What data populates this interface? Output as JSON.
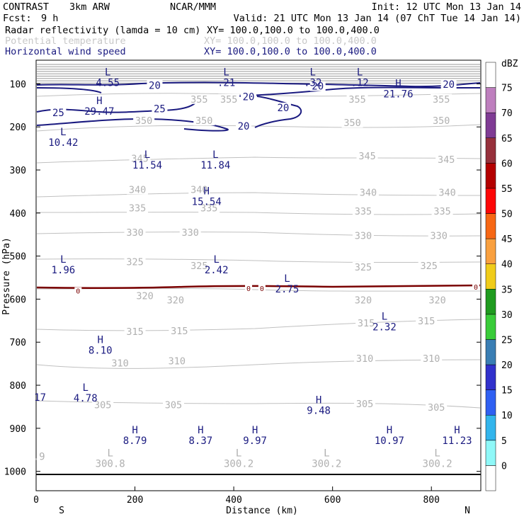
{
  "header": {
    "model": "CONTRAST",
    "config": "3km ARW",
    "org": "NCAR/MMM",
    "init": "Init: 12 UTC Mon 13 Jan 14",
    "fcst_label": "Fcst:",
    "fcst_value": "9 h",
    "valid": "Valid: 21 UTC Mon 13 Jan 14 (07 ChT Tue 14 Jan 14)"
  },
  "fields": [
    {
      "name": "Radar reflectivity (lamda = 10 cm)",
      "xy": "XY= 100.0,100.0 to 100.0,400.0",
      "color": "#000000"
    },
    {
      "name": "Potential temperature",
      "xy": "XY= 100.0,100.0 to 100.0,400.0",
      "color": "#c8c8c8"
    },
    {
      "name": "Horizontal wind speed",
      "xy": "XY= 100.0,100.0 to 100.0,400.0",
      "color": "#1a1a80"
    }
  ],
  "chart_data": {
    "type": "cross-section contour",
    "xlabel": "Distance (km)",
    "ylabel": "Pressure (hPa)",
    "xlim": [
      0,
      900
    ],
    "ylim": [
      1045,
      45
    ],
    "x_ticks": [
      0,
      200,
      400,
      600,
      800
    ],
    "y_ticks": [
      100,
      200,
      300,
      400,
      500,
      600,
      700,
      800,
      900,
      1000
    ],
    "x_end_labels": {
      "left": "S",
      "right": "N"
    },
    "colorbar": {
      "unit": "dBZ",
      "levels": [
        0,
        5,
        10,
        15,
        20,
        25,
        30,
        35,
        40,
        45,
        50,
        55,
        60,
        65,
        70,
        75
      ],
      "colors": [
        "#ffffff",
        "#8ff8f8",
        "#33b5ec",
        "#2f60f2",
        "#3131cc",
        "#3a7eb4",
        "#39cc39",
        "#1f9b1f",
        "#f0cc1a",
        "#f9a03f",
        "#f76714",
        "#fd0606",
        "#b40000",
        "#96303b",
        "#7f3b94",
        "#be7fbe",
        "#ffffff"
      ]
    },
    "theta_labels": [
      {
        "t": "355",
        "x": 330,
        "p": 140
      },
      {
        "t": "355",
        "x": 390,
        "p": 140
      },
      {
        "t": "355",
        "x": 650,
        "p": 140
      },
      {
        "t": "355",
        "x": 820,
        "p": 140
      },
      {
        "t": "350",
        "x": 218,
        "p": 190
      },
      {
        "t": "350",
        "x": 340,
        "p": 190
      },
      {
        "t": "350",
        "x": 640,
        "p": 195
      },
      {
        "t": "350",
        "x": 820,
        "p": 190
      },
      {
        "t": "345",
        "x": 210,
        "p": 278
      },
      {
        "t": "345",
        "x": 670,
        "p": 272
      },
      {
        "t": "345",
        "x": 830,
        "p": 280
      },
      {
        "t": "340",
        "x": 205,
        "p": 350
      },
      {
        "t": "340",
        "x": 330,
        "p": 350
      },
      {
        "t": "340",
        "x": 672,
        "p": 357
      },
      {
        "t": "340",
        "x": 832,
        "p": 357
      },
      {
        "t": "335",
        "x": 205,
        "p": 393
      },
      {
        "t": "335",
        "x": 350,
        "p": 393
      },
      {
        "t": "335",
        "x": 662,
        "p": 400
      },
      {
        "t": "335",
        "x": 822,
        "p": 400
      },
      {
        "t": "330",
        "x": 200,
        "p": 450
      },
      {
        "t": "330",
        "x": 312,
        "p": 450
      },
      {
        "t": "330",
        "x": 662,
        "p": 457
      },
      {
        "t": "330",
        "x": 815,
        "p": 457
      },
      {
        "t": "325",
        "x": 200,
        "p": 518
      },
      {
        "t": "325",
        "x": 330,
        "p": 527
      },
      {
        "t": "325",
        "x": 662,
        "p": 530
      },
      {
        "t": "325",
        "x": 795,
        "p": 527
      },
      {
        "t": "320",
        "x": 220,
        "p": 597
      },
      {
        "t": "320",
        "x": 282,
        "p": 607
      },
      {
        "t": "320",
        "x": 662,
        "p": 607
      },
      {
        "t": "320",
        "x": 812,
        "p": 607
      },
      {
        "t": "315",
        "x": 200,
        "p": 680
      },
      {
        "t": "315",
        "x": 290,
        "p": 678
      },
      {
        "t": "315",
        "x": 668,
        "p": 660
      },
      {
        "t": "315",
        "x": 790,
        "p": 655
      },
      {
        "t": "310",
        "x": 170,
        "p": 753
      },
      {
        "t": "310",
        "x": 285,
        "p": 748
      },
      {
        "t": "310",
        "x": 665,
        "p": 742
      },
      {
        "t": "310",
        "x": 800,
        "p": 742
      },
      {
        "t": "305",
        "x": 135,
        "p": 850
      },
      {
        "t": "305",
        "x": 278,
        "p": 850
      },
      {
        "t": "305",
        "x": 665,
        "p": 848
      },
      {
        "t": "305",
        "x": 810,
        "p": 856
      }
    ],
    "wind_labels": [
      {
        "t": "20",
        "x": 240,
        "p": 108
      },
      {
        "t": "20",
        "x": 570,
        "p": 110
      },
      {
        "t": "20",
        "x": 835,
        "p": 106
      },
      {
        "t": "20",
        "x": 430,
        "p": 135
      },
      {
        "t": "20",
        "x": 500,
        "p": 160
      },
      {
        "t": "20",
        "x": 420,
        "p": 203
      },
      {
        "t": "25",
        "x": 45,
        "p": 172
      },
      {
        "t": "25",
        "x": 250,
        "p": 163
      }
    ],
    "zero_dbz_labels": [
      {
        "t": "0",
        "x": 85,
        "p": 584
      },
      {
        "t": "0",
        "x": 430,
        "p": 578
      },
      {
        "t": "0",
        "x": 457,
        "p": 578
      },
      {
        "t": "0",
        "x": 890,
        "p": 575
      }
    ],
    "wind_extrema": [
      {
        "type": "L",
        "value": "4.55",
        "x": 145,
        "p": 80
      },
      {
        "type": "L",
        "value": ".21",
        "x": 385,
        "p": 80
      },
      {
        "type": "L",
        "value": ".32",
        "x": 560,
        "p": 80
      },
      {
        "type": "L",
        "value": ".12",
        "x": 655,
        "p": 80
      },
      {
        "type": "H",
        "value": "21.76",
        "x": 733,
        "p": 107
      },
      {
        "type": "H",
        "value": "29.47",
        "x": 128,
        "p": 147
      },
      {
        "type": "L",
        "value": "10.42",
        "x": 55,
        "p": 219
      },
      {
        "type": "L",
        "value": "11.54",
        "x": 225,
        "p": 272
      },
      {
        "type": "L",
        "value": "11.84",
        "x": 363,
        "p": 272
      },
      {
        "type": "H",
        "value": "15.54",
        "x": 345,
        "p": 357
      },
      {
        "type": "L",
        "value": "1.96",
        "x": 55,
        "p": 515
      },
      {
        "type": "L",
        "value": "2.42",
        "x": 365,
        "p": 515
      },
      {
        "type": "L",
        "value": "2.75",
        "x": 508,
        "p": 560
      },
      {
        "type": "L",
        "value": "2.32",
        "x": 705,
        "p": 648
      },
      {
        "type": "H",
        "value": "8.10",
        "x": 130,
        "p": 702
      },
      {
        "type": "L",
        "value": "4.78",
        "x": 100,
        "p": 813
      },
      {
        "type": "H",
        "value": "9.48",
        "x": 572,
        "p": 842
      },
      {
        "type": "H",
        "value": "8.79",
        "x": 200,
        "p": 912
      },
      {
        "type": "H",
        "value": "8.37",
        "x": 333,
        "p": 912
      },
      {
        "type": "H",
        "value": "9.97",
        "x": 443,
        "p": 912
      },
      {
        "type": "H",
        "value": "10.97",
        "x": 715,
        "p": 912
      },
      {
        "type": "H",
        "value": "11.23",
        "x": 852,
        "p": 912
      }
    ],
    "edge_wind_label": "17",
    "theta_extrema": [
      {
        "type": "L",
        "value": "300.8",
        "x": 150,
        "p": 965
      },
      {
        "type": "L",
        "value": "300.2",
        "x": 410,
        "p": 965
      },
      {
        "type": "L",
        "value": "300.2",
        "x": 588,
        "p": 965
      },
      {
        "type": "L",
        "value": "300.2",
        "x": 812,
        "p": 965
      }
    ],
    "edge_theta_label": ".9"
  }
}
